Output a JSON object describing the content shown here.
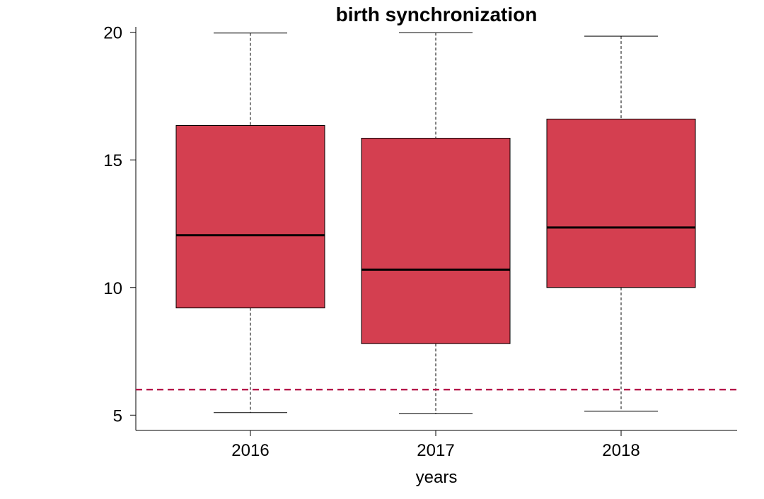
{
  "chart_data": {
    "type": "boxplot",
    "title": "birth synchronization",
    "xlabel": "years",
    "ylabel": "",
    "categories": [
      "2016",
      "2017",
      "2018"
    ],
    "boxes": [
      {
        "category": "2016",
        "whisker_low": 5.1,
        "q1": 9.2,
        "median": 12.05,
        "q3": 16.35,
        "whisker_high": 19.97
      },
      {
        "category": "2017",
        "whisker_low": 5.05,
        "q1": 7.8,
        "median": 10.7,
        "q3": 15.85,
        "whisker_high": 19.98
      },
      {
        "category": "2018",
        "whisker_low": 5.15,
        "q1": 10.0,
        "median": 12.35,
        "q3": 16.6,
        "whisker_high": 19.85
      }
    ],
    "ylim": [
      4.4,
      20.6
    ],
    "yticks": [
      "5",
      "10",
      "15",
      "20"
    ],
    "reference_line": {
      "y": 6.0,
      "style": "dashed"
    },
    "grid": false,
    "colors": {
      "box_fill": "#d43f50",
      "reference_line": "#b5164a",
      "outline": "#000000"
    }
  }
}
